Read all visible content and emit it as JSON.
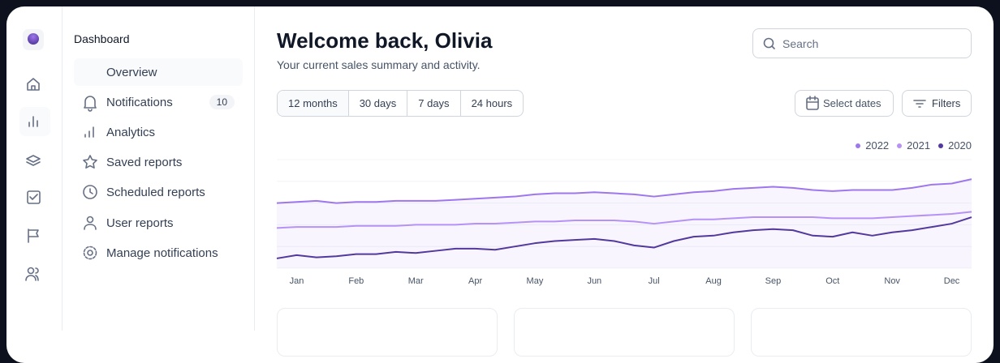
{
  "sidebar": {
    "title": "Dashboard",
    "items": [
      {
        "label": "Overview"
      },
      {
        "label": "Notifications",
        "badge": "10"
      },
      {
        "label": "Analytics"
      },
      {
        "label": "Saved reports"
      },
      {
        "label": "Scheduled reports"
      },
      {
        "label": "User reports"
      },
      {
        "label": "Manage notifications"
      }
    ]
  },
  "header": {
    "title": "Welcome back, Olivia",
    "subtitle": "Your current sales summary and activity.",
    "search_placeholder": "Search"
  },
  "tabs": [
    "12 months",
    "30 days",
    "7 days",
    "24 hours"
  ],
  "buttons": {
    "dates": "Select dates",
    "filters": "Filters"
  },
  "chart_data": {
    "type": "line",
    "grid": true,
    "legend": "top-right",
    "ylim": [
      0,
      100
    ],
    "categories": [
      null,
      "Jan",
      null,
      null,
      "Feb",
      null,
      null,
      "Mar",
      null,
      null,
      "Apr",
      null,
      null,
      "May",
      null,
      null,
      "Jun",
      null,
      null,
      "Jul",
      null,
      null,
      "Aug",
      null,
      null,
      "Sep",
      null,
      null,
      "Oct",
      null,
      null,
      "Nov",
      null,
      null,
      "Dec",
      null
    ],
    "series": [
      {
        "name": "2022",
        "color": "#9e77ed",
        "values": [
          60,
          61,
          62,
          60,
          61,
          61,
          62,
          62,
          62,
          63,
          64,
          65,
          66,
          68,
          69,
          69,
          70,
          69,
          68,
          66,
          68,
          70,
          71,
          73,
          74,
          75,
          74,
          72,
          71,
          72,
          72,
          72,
          74,
          77,
          78,
          82
        ]
      },
      {
        "name": "2021",
        "color": "#b692f6",
        "values": [
          37,
          38,
          38,
          38,
          39,
          39,
          39,
          40,
          40,
          40,
          41,
          41,
          42,
          43,
          43,
          44,
          44,
          44,
          43,
          41,
          43,
          45,
          45,
          46,
          47,
          47,
          47,
          47,
          46,
          46,
          46,
          47,
          48,
          49,
          50,
          52
        ]
      },
      {
        "name": "2020",
        "color": "#53389e",
        "values": [
          9,
          12,
          10,
          11,
          13,
          13,
          15,
          14,
          16,
          18,
          18,
          17,
          20,
          23,
          25,
          26,
          27,
          25,
          21,
          19,
          25,
          29,
          30,
          33,
          35,
          36,
          35,
          30,
          29,
          33,
          30,
          33,
          35,
          38,
          41,
          47
        ]
      }
    ]
  }
}
